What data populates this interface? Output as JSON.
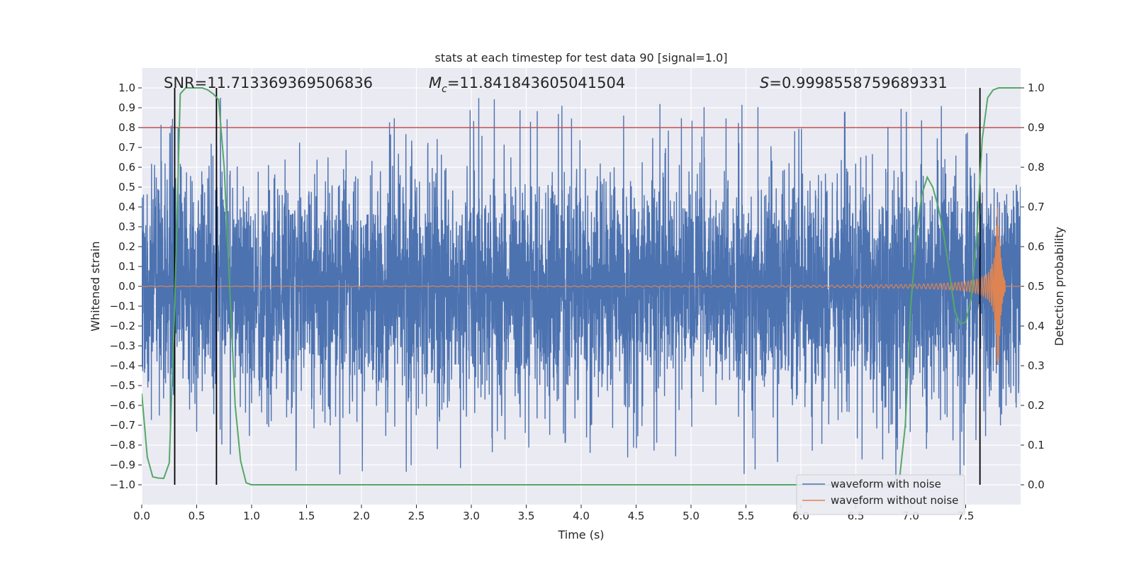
{
  "chart_data": {
    "type": "line",
    "title": "stats at each timestep for test data 90 [signal=1.0]",
    "xlabel": "Time (s)",
    "ylabel": "Whitened strain",
    "ylabel_right": "Detection probability",
    "xlim": [
      0.0,
      8.0
    ],
    "ylim": [
      -1.1,
      1.1
    ],
    "ylim_right": [
      -0.05,
      1.05
    ],
    "xticks": [
      0.0,
      0.5,
      1.0,
      1.5,
      2.0,
      2.5,
      3.0,
      3.5,
      4.0,
      4.5,
      5.0,
      5.5,
      6.0,
      6.5,
      7.0,
      7.5
    ],
    "xtick_labels": [
      "0.0",
      "0.5",
      "1.0",
      "1.5",
      "2.0",
      "2.5",
      "3.0",
      "3.5",
      "4.0",
      "4.5",
      "5.0",
      "5.5",
      "6.0",
      "6.5",
      "7.0",
      "7.5"
    ],
    "yticks": [
      1.0,
      0.9,
      0.8,
      0.7,
      0.6,
      0.5,
      0.4,
      0.3,
      0.2,
      0.1,
      0.0,
      -0.1,
      -0.2,
      -0.3,
      -0.4,
      -0.5,
      -0.6,
      -0.7,
      -0.8,
      -0.9,
      -1.0
    ],
    "ytick_labels": [
      "1.0",
      "0.9",
      "0.8",
      "0.7",
      "0.6",
      "0.5",
      "0.4",
      "0.3",
      "0.2",
      "0.1",
      "0.0",
      "−0.1",
      "−0.2",
      "−0.3",
      "−0.4",
      "−0.5",
      "−0.6",
      "−0.7",
      "−0.8",
      "−0.9",
      "−1.0"
    ],
    "yticks_right": [
      1.0,
      0.9,
      0.8,
      0.7,
      0.6,
      0.5,
      0.4,
      0.3,
      0.2,
      0.1,
      0.0
    ],
    "ytick_labels_right": [
      "1.0",
      "0.9",
      "0.8",
      "0.7",
      "0.6",
      "0.5",
      "0.4",
      "0.3",
      "0.2",
      "0.1",
      "0.0"
    ],
    "threshold": {
      "value": 0.8,
      "axis": "left",
      "color": "#c44e52"
    },
    "vertical_lines_x": [
      0.3,
      0.68,
      7.63
    ],
    "annotations": {
      "snr": "SNR=11.713369369506836",
      "mc_symbol": "M",
      "mc_sub": "c",
      "mc_value": "=11.841843605041504",
      "s_symbol": "S",
      "s_value": "=0.9998558759689331"
    },
    "series": [
      {
        "name": "waveform with noise",
        "color": "#4c72b0",
        "description": "dense noisy strain, envelope approx ±0.4 to ±0.9",
        "band_half_width": 0.42,
        "peak_spike_max": 0.95
      },
      {
        "name": "waveform without noise",
        "color": "#dd8452",
        "description": "chirp signal growing in amplitude and frequency until merger",
        "merger_time": 7.8,
        "peak_amplitude": 0.4,
        "start_amplitude": 0.01
      },
      {
        "name": "detection probability",
        "color": "#55a868",
        "axis": "right",
        "x": [
          0.0,
          0.05,
          0.1,
          0.15,
          0.2,
          0.25,
          0.3,
          0.35,
          0.4,
          0.45,
          0.5,
          0.55,
          0.6,
          0.65,
          0.7,
          0.75,
          0.8,
          0.85,
          0.9,
          0.95,
          1.0,
          1.5,
          2.0,
          2.5,
          3.0,
          3.5,
          4.0,
          4.5,
          5.0,
          5.5,
          6.0,
          6.5,
          6.8,
          6.9,
          6.95,
          7.0,
          7.05,
          7.1,
          7.15,
          7.2,
          7.25,
          7.3,
          7.35,
          7.4,
          7.45,
          7.5,
          7.55,
          7.6,
          7.65,
          7.7,
          7.75,
          7.8,
          7.85,
          7.9,
          7.95,
          8.0
        ],
        "values": [
          0.23,
          0.07,
          0.02,
          0.017,
          0.016,
          0.055,
          0.45,
          0.985,
          1.0,
          1.0,
          1.0,
          1.0,
          0.995,
          0.985,
          0.97,
          0.8,
          0.5,
          0.2,
          0.06,
          0.005,
          0.0,
          0.0,
          0.0,
          0.0,
          0.0,
          0.0,
          0.0,
          0.0,
          0.0,
          0.0,
          0.0,
          0.0,
          0.0,
          0.02,
          0.15,
          0.45,
          0.62,
          0.73,
          0.775,
          0.75,
          0.7,
          0.63,
          0.54,
          0.44,
          0.405,
          0.41,
          0.47,
          0.62,
          0.87,
          0.975,
          0.995,
          1.0,
          1.0,
          1.0,
          1.0,
          1.0
        ]
      }
    ],
    "legend": {
      "location": "lower-center-right",
      "entries": [
        "waveform with noise",
        "waveform without noise"
      ]
    },
    "background_color": "#eaeaf2",
    "grid": true
  }
}
